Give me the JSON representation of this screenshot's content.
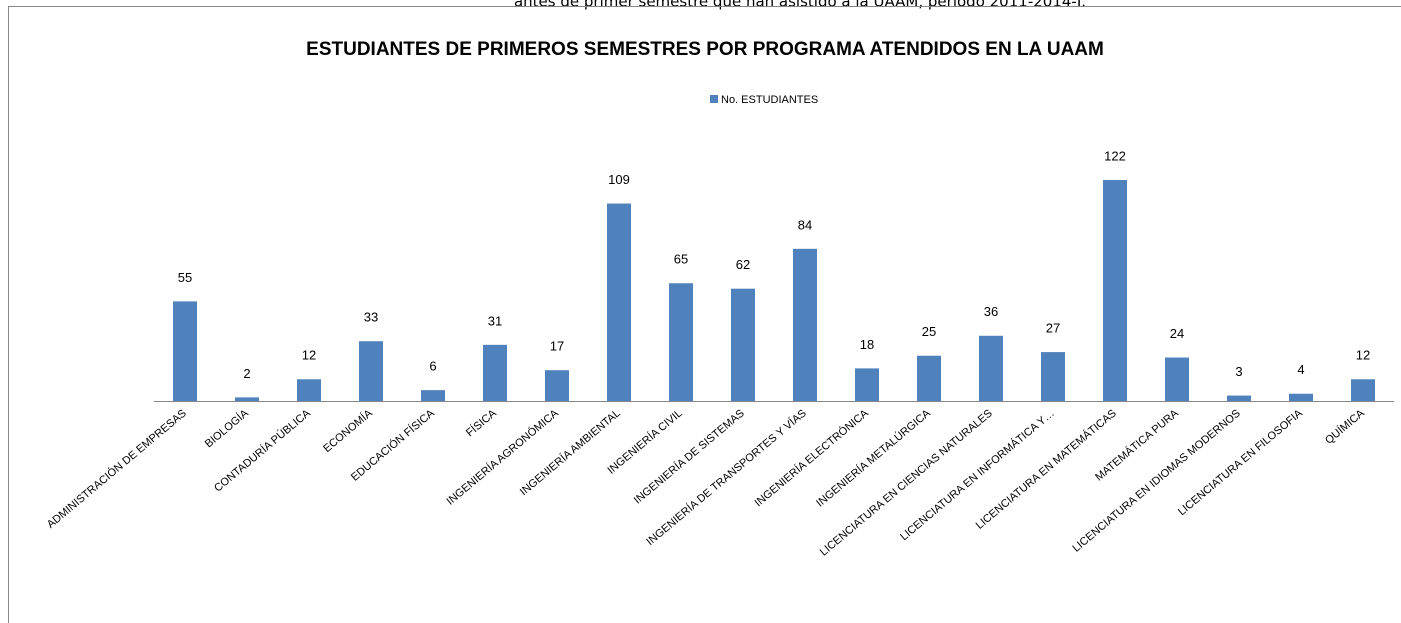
{
  "caption": "antes de primer semestre que han asistido a la UAAM, período 2011-2014-I.",
  "chart_data": {
    "type": "bar",
    "title": "ESTUDIANTES DE PRIMEROS SEMESTRES  POR PROGRAMA ATENDIDOS EN LA UAAM",
    "categories": [
      "ADMINISTRACIÓN DE EMPRESAS",
      "BIOLOGÍA",
      "CONTADURÍA PÚBLICA",
      "ECONOMÍA",
      "EDUCACIÓN FÍSICA",
      "FÍSICA",
      "INGENIERÍA AGRONÓMICA",
      "INGENIERÍA AMBIENTAL",
      "INGENIERÍA CIVIL",
      "INGENIERÍA DE SISTEMAS",
      "INGENIERÍA DE TRANSPORTES Y VÍAS",
      "INGENIERÍA ELECTRÓNICA",
      "INGENIERÍA METALÚRGICA",
      "LICENCIATURA EN CIENCIAS NATURALES",
      "LICENCIATURA EN INFORMÁTICA Y…",
      "LICENCIATURA EN MATEMÁTICAS",
      "MATEMÁTICA PURA",
      "LICENCIATURA EN IDIOMAS MODERNOS",
      "LICENCIATURA EN FILOSOFIA",
      "QUÍMICA"
    ],
    "series": [
      {
        "name": "No. ESTUDIANTES",
        "color": "#4f81bd",
        "values": [
          55,
          2,
          12,
          33,
          6,
          31,
          17,
          109,
          65,
          62,
          84,
          18,
          25,
          36,
          27,
          122,
          24,
          3,
          4,
          12
        ]
      }
    ],
    "legend": "top"
  }
}
